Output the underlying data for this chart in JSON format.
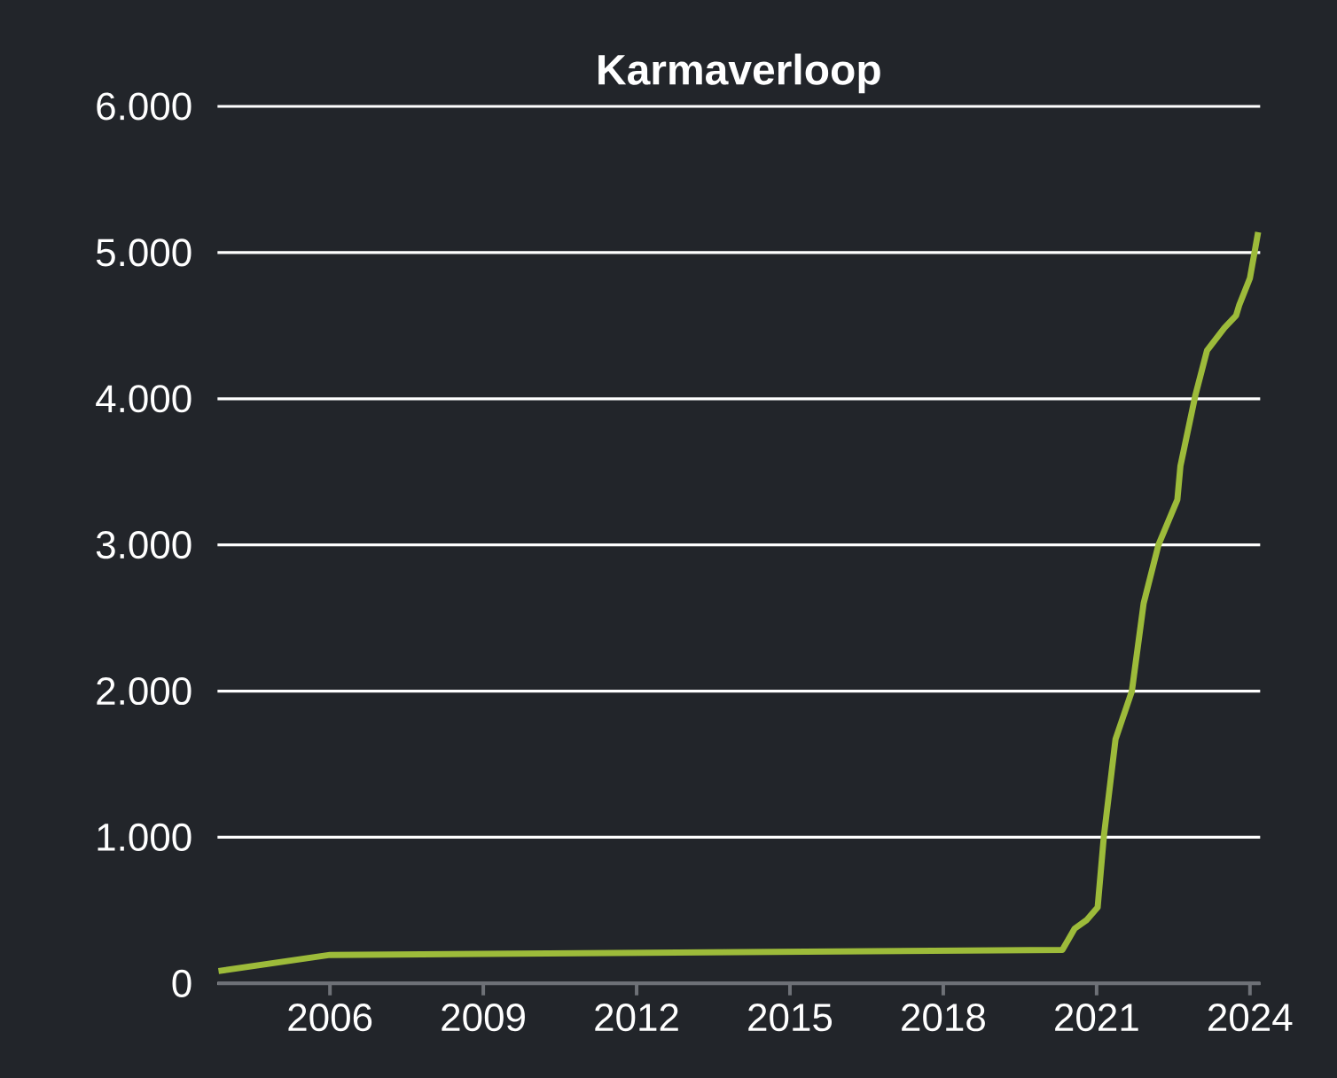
{
  "chart_data": {
    "type": "line",
    "title": "Karmaverloop",
    "x": [
      2003.82,
      2006.0,
      2020.33,
      2020.57,
      2020.81,
      2021.02,
      2021.14,
      2021.37,
      2021.69,
      2021.92,
      2022.21,
      2022.58,
      2022.64,
      2022.93,
      2023.16,
      2023.5,
      2023.73,
      2023.79,
      2024.0,
      2024.16
    ],
    "series": [
      {
        "color": "#9dbb3a",
        "values": [
          85,
          195,
          230,
          375,
          435,
          520,
          1000,
          1670,
          2000,
          2600,
          3000,
          3310,
          3540,
          4020,
          4330,
          4485,
          4570,
          4640,
          4825,
          5140
        ]
      }
    ],
    "xlim": [
      2003.8,
      2024.2
    ],
    "xticks": [
      2006,
      2009,
      2012,
      2015,
      2018,
      2021,
      2024
    ],
    "ylim": [
      0,
      6000
    ],
    "yticks": [
      {
        "value": 0,
        "label": "0"
      },
      {
        "value": 1000,
        "label": "1.000"
      },
      {
        "value": 2000,
        "label": "2.000"
      },
      {
        "value": 3000,
        "label": "3.000"
      },
      {
        "value": 4000,
        "label": "4.000"
      },
      {
        "value": 5000,
        "label": "5.000"
      },
      {
        "value": 6000,
        "label": "6.000"
      }
    ],
    "grid": "y",
    "marker": "none",
    "line_style": "solid"
  }
}
